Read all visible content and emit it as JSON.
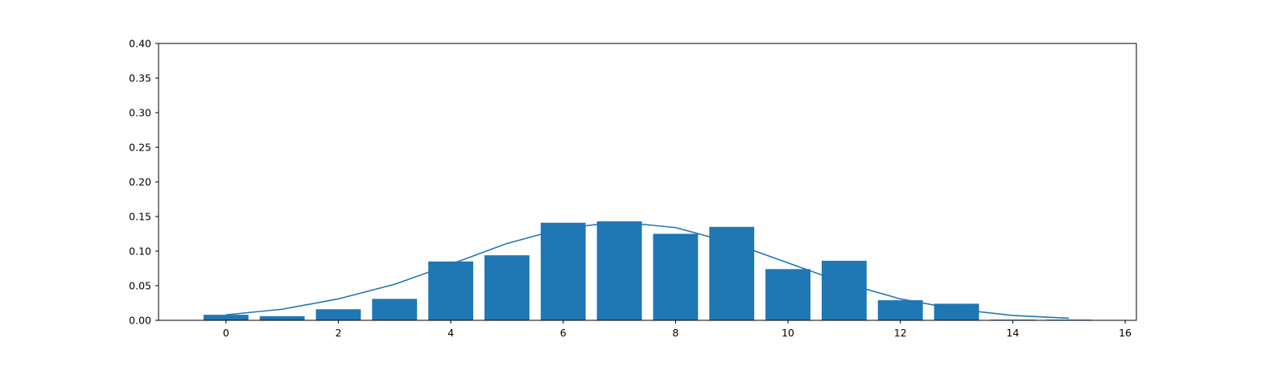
{
  "chart_data": {
    "type": "bar",
    "title": "",
    "xlabel": "",
    "ylabel": "",
    "xlim": [
      -1.2,
      16.2
    ],
    "ylim": [
      0,
      0.4
    ],
    "grid": false,
    "legend": "",
    "bar_color": "#1f77b4",
    "line_color": "#1f77b4",
    "x_ticks": [
      "0",
      "2",
      "4",
      "6",
      "8",
      "10",
      "12",
      "14",
      "16"
    ],
    "y_ticks": [
      "0.00",
      "0.05",
      "0.10",
      "0.15",
      "0.20",
      "0.25",
      "0.30",
      "0.35",
      "0.40"
    ],
    "bars": {
      "x": [
        0,
        1,
        2,
        3,
        4,
        5,
        6,
        7,
        8,
        9,
        10,
        11,
        12,
        13,
        14,
        15
      ],
      "values": [
        0.008,
        0.006,
        0.016,
        0.031,
        0.085,
        0.094,
        0.141,
        0.143,
        0.125,
        0.135,
        0.074,
        0.086,
        0.029,
        0.024,
        0.001,
        0.001
      ]
    },
    "line": {
      "x": [
        0,
        1,
        2,
        3,
        4,
        5,
        6,
        7,
        8,
        9,
        10,
        11,
        12,
        13,
        14,
        15
      ],
      "values": [
        0.008,
        0.016,
        0.031,
        0.052,
        0.081,
        0.111,
        0.133,
        0.142,
        0.134,
        0.112,
        0.083,
        0.054,
        0.031,
        0.016,
        0.007,
        0.003
      ]
    }
  }
}
